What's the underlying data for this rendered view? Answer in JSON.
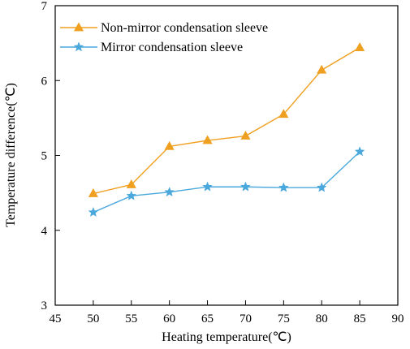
{
  "chart_data": {
    "type": "line",
    "title": "",
    "xlabel": "Heating temperature(℃)",
    "ylabel": "Temperature difference(℃)",
    "xlim": [
      45,
      90
    ],
    "ylim": [
      3,
      7
    ],
    "xticks": [
      "45",
      "50",
      "55",
      "60",
      "65",
      "70",
      "75",
      "80",
      "85",
      "90"
    ],
    "yticks": [
      "3",
      "4",
      "5",
      "6",
      "7"
    ],
    "grid": false,
    "legend_position": "top-left",
    "x": [
      50,
      55,
      60,
      65,
      70,
      75,
      80,
      85
    ],
    "series": [
      {
        "name": "Non-mirror condensation sleeve",
        "values": [
          4.49,
          4.61,
          5.12,
          5.2,
          5.26,
          5.55,
          6.14,
          6.44
        ],
        "color": "#f0a020",
        "marker": "triangle"
      },
      {
        "name": "Mirror condensation sleeve",
        "values": [
          4.24,
          4.46,
          4.51,
          4.58,
          4.58,
          4.57,
          4.57,
          5.05
        ],
        "color": "#4aa8dc",
        "marker": "star"
      }
    ]
  }
}
